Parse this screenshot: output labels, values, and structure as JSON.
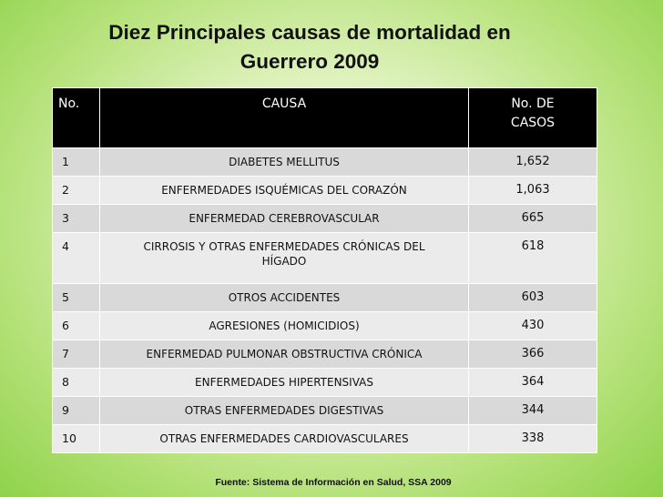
{
  "title": {
    "line1": "Diez Principales causas de mortalidad en",
    "line2": "Guerrero 2009"
  },
  "table": {
    "headers": {
      "no": "No.",
      "causa": "CAUSA",
      "casos_line1": "No. DE",
      "casos_line2": "CASOS"
    },
    "rows": [
      {
        "no": "1",
        "causa": "DIABETES MELLITUS",
        "casos": "1,652"
      },
      {
        "no": "2",
        "causa": "ENFERMEDADES ISQUÉMICAS DEL CORAZÓN",
        "casos": "1,063"
      },
      {
        "no": "3",
        "causa": "ENFERMEDAD CEREBROVASCULAR",
        "casos": "665"
      },
      {
        "no": "4",
        "causa_line1": "CIRROSIS Y OTRAS ENFERMEDADES CRÓNICAS DEL",
        "causa_line2": "HÍGADO",
        "casos": "618"
      },
      {
        "no": "5",
        "causa": "OTROS ACCIDENTES",
        "casos": "603"
      },
      {
        "no": "6",
        "causa": "AGRESIONES (HOMICIDIOS)",
        "casos": "430"
      },
      {
        "no": "7",
        "causa": "ENFERMEDAD PULMONAR OBSTRUCTIVA CRÓNICA",
        "casos": "366"
      },
      {
        "no": "8",
        "causa": "ENFERMEDADES HIPERTENSIVAS",
        "casos": "364"
      },
      {
        "no": "9",
        "causa": "OTRAS ENFERMEDADES DIGESTIVAS",
        "casos": "344"
      },
      {
        "no": "10",
        "causa": "OTRAS ENFERMEDADES CARDIOVASCULARES",
        "casos": "338"
      }
    ]
  },
  "source": "Fuente: Sistema de Información en Salud, SSA 2009",
  "colors": {
    "background_center": "#f6fbe9",
    "background_edge": "#8fd24a",
    "header_bg": "#000000",
    "row_odd": "#d9d9d9",
    "row_even": "#ebebeb"
  }
}
